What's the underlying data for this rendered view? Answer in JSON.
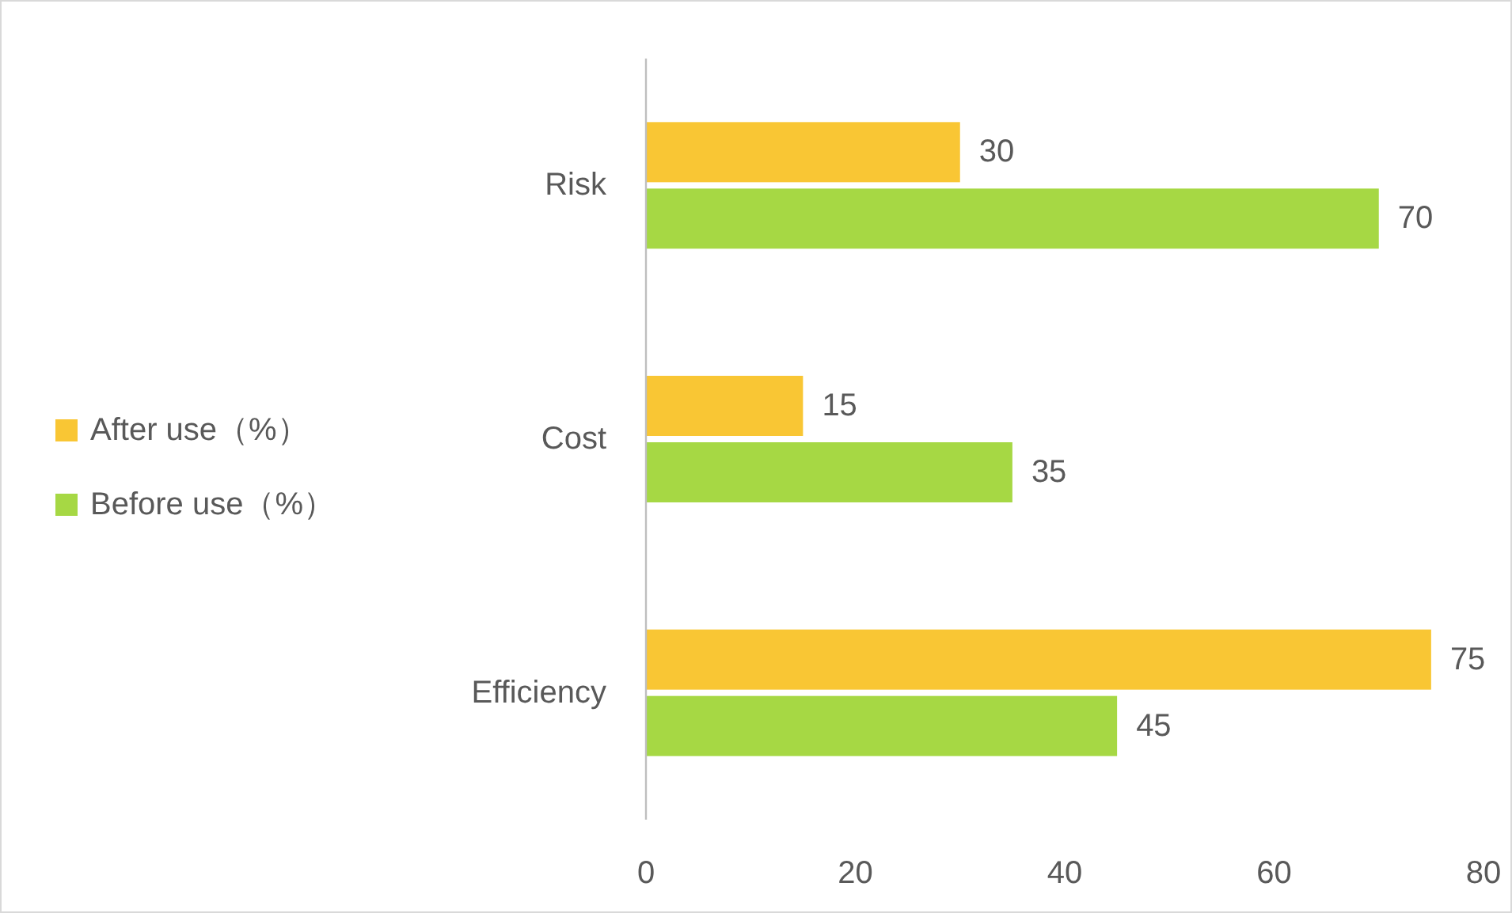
{
  "chart_data": {
    "type": "bar",
    "orientation": "horizontal",
    "categories": [
      "Risk",
      "Cost",
      "Efficiency"
    ],
    "series": [
      {
        "name": "After use（%）",
        "color": "#f9c634",
        "values": [
          30,
          15,
          75
        ]
      },
      {
        "name": "Before use（%）",
        "color": "#a6d844",
        "values": [
          70,
          35,
          45
        ]
      }
    ],
    "xlim": [
      0,
      80
    ],
    "xticks": [
      0,
      20,
      40,
      60,
      80
    ],
    "grid": false,
    "legend": "left",
    "data_labels": true
  }
}
